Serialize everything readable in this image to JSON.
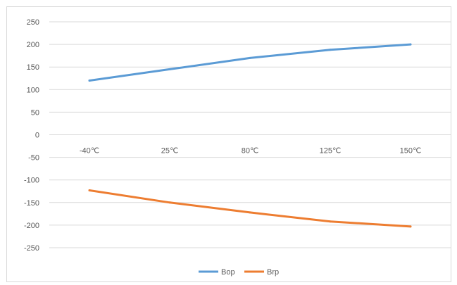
{
  "chart_data": {
    "type": "line",
    "categories": [
      "-40℃",
      "25℃",
      "80℃",
      "125℃",
      "150℃"
    ],
    "series": [
      {
        "name": "Bop",
        "values": [
          120,
          145,
          170,
          188,
          200
        ],
        "color": "#5b9bd5"
      },
      {
        "name": "Brp",
        "values": [
          -123,
          -150,
          -172,
          -192,
          -203
        ],
        "color": "#ed7d31"
      }
    ],
    "y_ticks": [
      250,
      200,
      150,
      100,
      50,
      0,
      -50,
      -100,
      -150,
      -200,
      -250
    ],
    "ylim": [
      -250,
      250
    ],
    "grid": true,
    "gridline_color": "#d9d9d9",
    "legend_position": "bottom",
    "title": "",
    "xlabel": "",
    "ylabel": ""
  }
}
